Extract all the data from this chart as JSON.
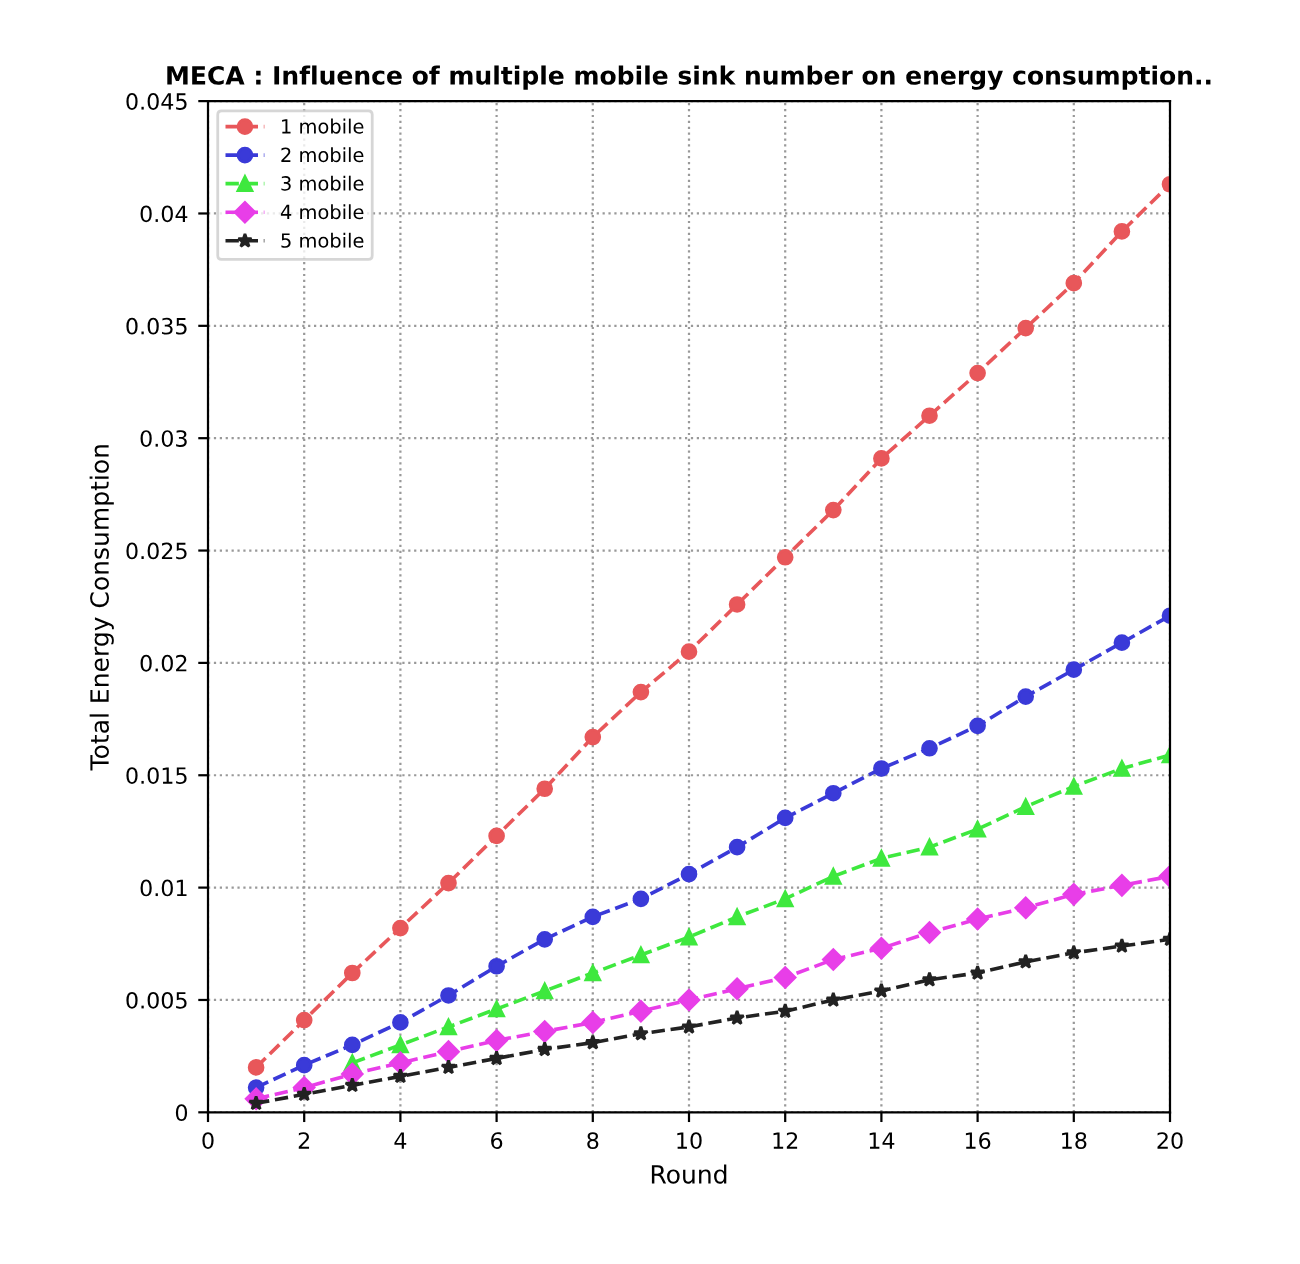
{
  "chart_data": {
    "type": "line",
    "title": "MECA : Influence of multiple mobile sink number on energy consumption..",
    "xlabel": "Round",
    "ylabel": "Total Energy Consumption",
    "x": [
      1,
      2,
      3,
      4,
      5,
      6,
      7,
      8,
      9,
      10,
      11,
      12,
      13,
      14,
      15,
      16,
      17,
      18,
      19,
      20
    ],
    "series": [
      {
        "name": "1 mobile",
        "color": "#e8575a",
        "marker": "circle",
        "values": [
          0.002,
          0.0041,
          0.0062,
          0.0082,
          0.0102,
          0.0123,
          0.0144,
          0.0167,
          0.0187,
          0.0205,
          0.0226,
          0.0247,
          0.0268,
          0.0291,
          0.031,
          0.0329,
          0.0349,
          0.0369,
          0.0392,
          0.0413
        ]
      },
      {
        "name": "2 mobile",
        "color": "#3a3ad8",
        "marker": "circle",
        "values": [
          0.0011,
          0.0021,
          0.003,
          0.004,
          0.0052,
          0.0065,
          0.0077,
          0.0087,
          0.0095,
          0.0106,
          0.0118,
          0.0131,
          0.0142,
          0.0153,
          0.0162,
          0.0172,
          0.0185,
          0.0197,
          0.0209,
          0.0221
        ]
      },
      {
        "name": "3 mobile",
        "color": "#3ee83e",
        "marker": "triangle",
        "values": [
          null,
          null,
          0.0022,
          0.003,
          0.0038,
          0.0046,
          0.0054,
          0.0062,
          0.007,
          0.0078,
          0.0087,
          0.0095,
          0.0105,
          0.0113,
          0.0118,
          0.0126,
          0.0136,
          0.0145,
          0.0153,
          0.0159
        ]
      },
      {
        "name": "4 mobile",
        "color": "#e83ee8",
        "marker": "diamond",
        "values": [
          0.0006,
          0.0011,
          0.0017,
          0.0022,
          0.0027,
          0.0032,
          0.0036,
          0.004,
          0.0045,
          0.005,
          0.0055,
          0.006,
          0.0068,
          0.0073,
          0.008,
          0.0086,
          0.0091,
          0.0097,
          0.0101,
          0.0105
        ]
      },
      {
        "name": "5 mobile",
        "color": "#222222",
        "marker": "star",
        "values": [
          0.0004,
          0.0008,
          0.0012,
          0.0016,
          0.002,
          0.0024,
          0.0028,
          0.0031,
          0.0035,
          0.0038,
          0.0042,
          0.0045,
          0.005,
          0.0054,
          0.0059,
          0.0062,
          0.0067,
          0.0071,
          0.0074,
          0.0077
        ]
      }
    ],
    "line_style": "dashed",
    "xlim": [
      0,
      20
    ],
    "xticks": [
      0,
      2,
      4,
      6,
      8,
      10,
      12,
      14,
      16,
      18,
      20
    ],
    "ylim": [
      0,
      0.045
    ],
    "yticks": [
      0,
      0.005,
      0.01,
      0.015,
      0.02,
      0.025,
      0.03,
      0.035,
      0.04,
      0.045
    ],
    "grid": true,
    "legend": "top left"
  }
}
